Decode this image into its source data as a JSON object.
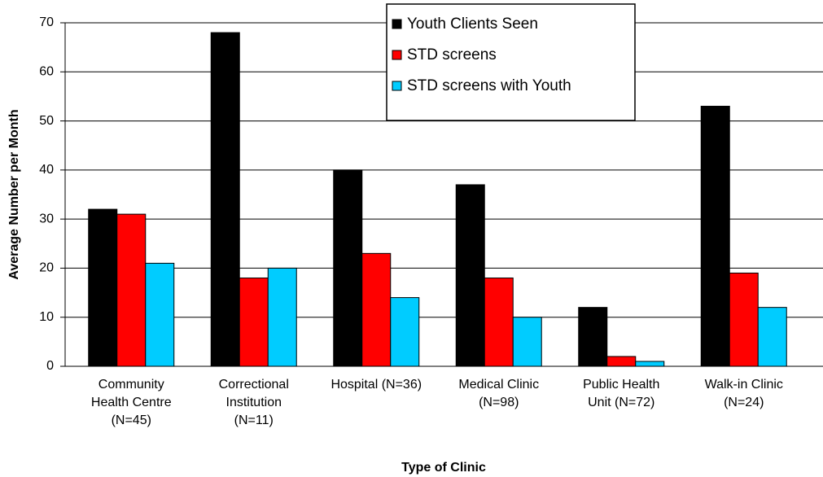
{
  "chart_data": {
    "type": "bar",
    "x_label": "Type of Clinic",
    "y_label": "Average Number per Month",
    "categories": [
      "Community\nHealth Centre\n(N=45)",
      "Correctional\nInstitution\n(N=11)",
      "Hospital (N=36)",
      "Medical Clinic\n(N=98)",
      "Public Health\nUnit (N=72)",
      "Walk-in Clinic\n(N=24)"
    ],
    "series": [
      {
        "name": "Youth Clients Seen",
        "color": "#000000",
        "values": [
          32,
          68,
          40,
          37,
          12,
          53
        ]
      },
      {
        "name": "STD screens",
        "color": "#ff0000",
        "values": [
          31,
          18,
          23,
          18,
          2,
          19
        ]
      },
      {
        "name": "STD screens with Youth",
        "color": "#00ccff",
        "values": [
          21,
          20,
          14,
          10,
          1,
          12
        ]
      }
    ],
    "ylim": [
      0,
      70
    ],
    "yticks": [
      0,
      10,
      20,
      30,
      40,
      50,
      60,
      70
    ],
    "grid": true,
    "legend": "top"
  }
}
